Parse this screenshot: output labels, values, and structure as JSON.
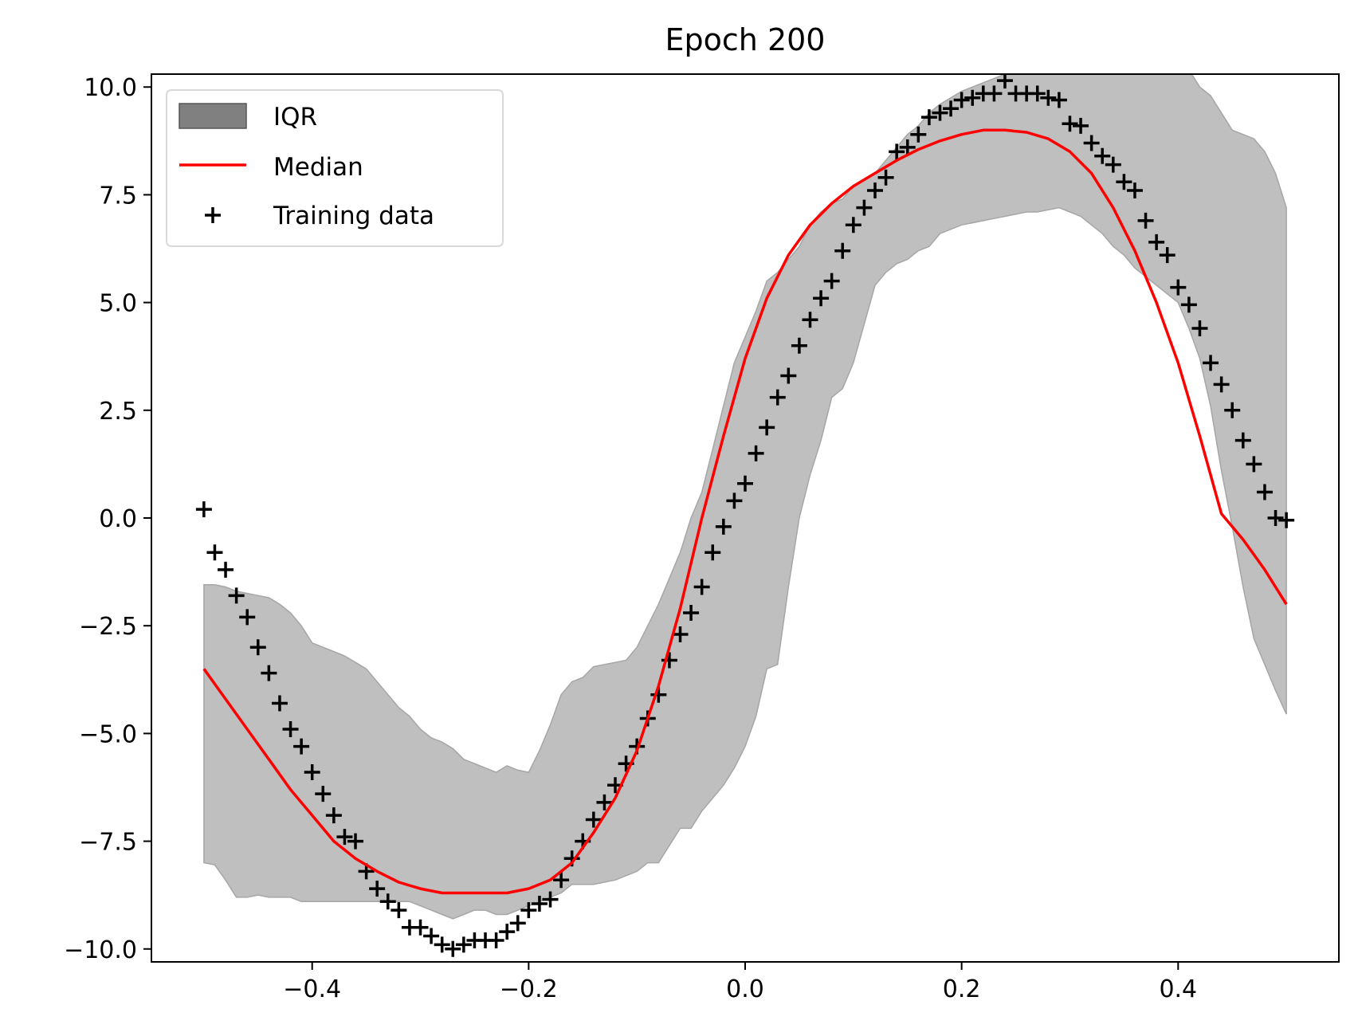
{
  "chart_data": {
    "type": "line",
    "title": "Epoch 200",
    "xlabel": "",
    "ylabel": "",
    "xlim": [
      -0.5485,
      0.5485
    ],
    "ylim": [
      -10.3,
      10.3
    ],
    "xticks": [
      -0.4,
      -0.2,
      0.0,
      0.2,
      0.4
    ],
    "xtick_labels": [
      "−0.4",
      "−0.2",
      "0.0",
      "0.2",
      "0.4"
    ],
    "yticks": [
      -10.0,
      -7.5,
      -5.0,
      -2.5,
      0.0,
      2.5,
      5.0,
      7.5,
      10.0
    ],
    "ytick_labels": [
      "−10.0",
      "−7.5",
      "−5.0",
      "−2.5",
      "0.0",
      "2.5",
      "5.0",
      "7.5",
      "10.0"
    ],
    "grid": false,
    "legend_location": "upper left",
    "legend": [
      {
        "label": "IQR",
        "kind": "patch"
      },
      {
        "label": "Median",
        "kind": "line"
      },
      {
        "label": "Training data",
        "kind": "marker"
      }
    ],
    "colors": {
      "iqr_fill": "#bfbfbf",
      "iqr_edge": "#a6a6a6",
      "iqr_legend": "#808080",
      "median": "#ff0000",
      "training": "#000000"
    },
    "iqr": {
      "name": "IQR",
      "x": [
        -0.5,
        -0.49,
        -0.48,
        -0.47,
        -0.46,
        -0.45,
        -0.44,
        -0.43,
        -0.42,
        -0.41,
        -0.4,
        -0.39,
        -0.38,
        -0.37,
        -0.36,
        -0.35,
        -0.34,
        -0.33,
        -0.32,
        -0.31,
        -0.3,
        -0.29,
        -0.28,
        -0.27,
        -0.26,
        -0.25,
        -0.24,
        -0.23,
        -0.22,
        -0.21,
        -0.2,
        -0.19,
        -0.18,
        -0.17,
        -0.16,
        -0.15,
        -0.14,
        -0.13,
        -0.12,
        -0.11,
        -0.1,
        -0.09,
        -0.08,
        -0.07,
        -0.06,
        -0.05,
        -0.04,
        -0.03,
        -0.02,
        -0.01,
        0.0,
        0.01,
        0.02,
        0.03,
        0.04,
        0.05,
        0.06,
        0.07,
        0.08,
        0.09,
        0.1,
        0.11,
        0.12,
        0.13,
        0.14,
        0.15,
        0.16,
        0.17,
        0.18,
        0.19,
        0.2,
        0.21,
        0.22,
        0.23,
        0.24,
        0.25,
        0.26,
        0.27,
        0.28,
        0.29,
        0.3,
        0.31,
        0.32,
        0.33,
        0.34,
        0.35,
        0.36,
        0.37,
        0.38,
        0.39,
        0.4,
        0.41,
        0.42,
        0.43,
        0.44,
        0.45,
        0.46,
        0.47,
        0.48,
        0.49,
        0.5
      ],
      "lower": [
        -8.0,
        -8.05,
        -8.4,
        -8.8,
        -8.8,
        -8.75,
        -8.8,
        -8.8,
        -8.8,
        -8.9,
        -8.9,
        -8.9,
        -8.9,
        -8.9,
        -8.9,
        -8.9,
        -8.9,
        -8.9,
        -8.9,
        -8.9,
        -9.0,
        -9.1,
        -9.2,
        -9.3,
        -9.2,
        -9.1,
        -9.1,
        -9.2,
        -9.2,
        -9.1,
        -9.0,
        -8.9,
        -8.8,
        -8.7,
        -8.5,
        -8.5,
        -8.5,
        -8.45,
        -8.4,
        -8.3,
        -8.2,
        -8.0,
        -8.0,
        -7.6,
        -7.2,
        -7.2,
        -6.8,
        -6.5,
        -6.2,
        -5.8,
        -5.3,
        -4.6,
        -3.5,
        -3.4,
        -1.6,
        0.0,
        1.0,
        1.8,
        2.8,
        3.0,
        3.6,
        4.5,
        5.4,
        5.7,
        5.9,
        6.0,
        6.2,
        6.3,
        6.6,
        6.7,
        6.8,
        6.85,
        6.9,
        6.95,
        7.0,
        7.05,
        7.1,
        7.1,
        7.15,
        7.2,
        7.1,
        7.0,
        6.8,
        6.6,
        6.3,
        6.1,
        5.8,
        5.6,
        5.4,
        5.2,
        5.0,
        4.4,
        3.7,
        2.6,
        1.1,
        -0.2,
        -1.6,
        -2.8,
        -3.4,
        -4.0,
        -4.55
      ],
      "upper": [
        -1.55,
        -1.55,
        -1.6,
        -1.7,
        -1.75,
        -1.8,
        -1.85,
        -2.0,
        -2.2,
        -2.5,
        -2.9,
        -3.0,
        -3.1,
        -3.2,
        -3.35,
        -3.5,
        -3.8,
        -4.1,
        -4.4,
        -4.6,
        -4.9,
        -5.1,
        -5.2,
        -5.35,
        -5.6,
        -5.7,
        -5.8,
        -5.9,
        -5.75,
        -5.85,
        -5.9,
        -5.4,
        -4.8,
        -4.1,
        -3.8,
        -3.7,
        -3.45,
        -3.4,
        -3.35,
        -3.3,
        -3.0,
        -2.5,
        -2.0,
        -1.4,
        -0.8,
        0.0,
        0.6,
        1.6,
        2.6,
        3.6,
        4.2,
        4.8,
        5.5,
        5.7,
        6.0,
        6.3,
        6.8,
        7.1,
        7.3,
        7.4,
        7.7,
        7.85,
        8.0,
        8.3,
        8.6,
        8.9,
        9.1,
        9.4,
        9.6,
        9.75,
        9.9,
        10.0,
        10.1,
        10.2,
        10.3,
        10.4,
        10.5,
        10.6,
        10.6,
        10.6,
        10.6,
        10.6,
        10.6,
        10.6,
        10.6,
        10.55,
        10.5,
        10.5,
        10.5,
        10.45,
        10.45,
        10.4,
        10.0,
        9.8,
        9.4,
        9.0,
        8.9,
        8.8,
        8.5,
        8.0,
        7.2
      ]
    },
    "median": {
      "name": "Median",
      "x": [
        -0.5,
        -0.48,
        -0.46,
        -0.44,
        -0.42,
        -0.4,
        -0.38,
        -0.36,
        -0.34,
        -0.32,
        -0.3,
        -0.28,
        -0.26,
        -0.24,
        -0.22,
        -0.2,
        -0.18,
        -0.16,
        -0.14,
        -0.12,
        -0.1,
        -0.08,
        -0.06,
        -0.04,
        -0.02,
        0.0,
        0.02,
        0.04,
        0.06,
        0.08,
        0.1,
        0.12,
        0.14,
        0.16,
        0.18,
        0.2,
        0.22,
        0.24,
        0.26,
        0.28,
        0.3,
        0.32,
        0.34,
        0.36,
        0.38,
        0.4,
        0.42,
        0.44,
        0.46,
        0.48,
        0.5
      ],
      "values": [
        -3.5,
        -4.2,
        -4.9,
        -5.6,
        -6.3,
        -6.9,
        -7.5,
        -7.9,
        -8.2,
        -8.45,
        -8.6,
        -8.7,
        -8.7,
        -8.7,
        -8.7,
        -8.6,
        -8.4,
        -8.0,
        -7.3,
        -6.5,
        -5.4,
        -3.9,
        -2.1,
        0.0,
        1.9,
        3.7,
        5.1,
        6.1,
        6.8,
        7.3,
        7.7,
        8.0,
        8.3,
        8.55,
        8.75,
        8.9,
        9.0,
        9.0,
        8.95,
        8.8,
        8.5,
        8.0,
        7.2,
        6.2,
        5.0,
        3.6,
        1.9,
        0.1,
        -0.5,
        -1.2,
        -2.0
      ]
    },
    "training": {
      "name": "Training data",
      "x": [
        -0.5,
        -0.49,
        -0.48,
        -0.47,
        -0.46,
        -0.45,
        -0.44,
        -0.43,
        -0.42,
        -0.41,
        -0.4,
        -0.39,
        -0.38,
        -0.37,
        -0.36,
        -0.35,
        -0.34,
        -0.33,
        -0.32,
        -0.31,
        -0.3,
        -0.29,
        -0.28,
        -0.27,
        -0.26,
        -0.25,
        -0.24,
        -0.23,
        -0.22,
        -0.21,
        -0.2,
        -0.19,
        -0.18,
        -0.17,
        -0.16,
        -0.15,
        -0.14,
        -0.13,
        -0.12,
        -0.11,
        -0.1,
        -0.09,
        -0.08,
        -0.07,
        -0.06,
        -0.05,
        -0.04,
        -0.03,
        -0.02,
        -0.01,
        0.0,
        0.01,
        0.02,
        0.03,
        0.04,
        0.05,
        0.06,
        0.07,
        0.08,
        0.09,
        0.1,
        0.11,
        0.12,
        0.13,
        0.14,
        0.15,
        0.16,
        0.17,
        0.18,
        0.19,
        0.2,
        0.21,
        0.22,
        0.23,
        0.24,
        0.25,
        0.26,
        0.27,
        0.28,
        0.29,
        0.3,
        0.31,
        0.32,
        0.33,
        0.34,
        0.35,
        0.36,
        0.37,
        0.38,
        0.39,
        0.4,
        0.41,
        0.42,
        0.43,
        0.44,
        0.45,
        0.46,
        0.47,
        0.48,
        0.49,
        0.5
      ],
      "values": [
        0.2,
        -0.8,
        -1.2,
        -1.8,
        -2.3,
        -3.0,
        -3.6,
        -4.3,
        -4.9,
        -5.3,
        -5.9,
        -6.4,
        -6.9,
        -7.4,
        -7.5,
        -8.2,
        -8.6,
        -8.9,
        -9.1,
        -9.5,
        -9.5,
        -9.7,
        -9.9,
        -10.0,
        -9.9,
        -9.8,
        -9.8,
        -9.8,
        -9.6,
        -9.4,
        -9.1,
        -8.95,
        -8.85,
        -8.4,
        -7.9,
        -7.5,
        -7.0,
        -6.6,
        -6.2,
        -5.7,
        -5.3,
        -4.65,
        -4.1,
        -3.3,
        -2.7,
        -2.2,
        -1.6,
        -0.8,
        -0.2,
        0.4,
        0.8,
        1.5,
        2.1,
        2.8,
        3.3,
        4.0,
        4.6,
        5.1,
        5.5,
        6.2,
        6.8,
        7.2,
        7.6,
        7.9,
        8.5,
        8.6,
        8.9,
        9.3,
        9.4,
        9.5,
        9.7,
        9.75,
        9.85,
        9.85,
        10.15,
        9.85,
        9.85,
        9.85,
        9.75,
        9.7,
        9.15,
        9.1,
        8.7,
        8.4,
        8.2,
        7.8,
        7.6,
        6.9,
        6.4,
        6.1,
        5.35,
        4.95,
        4.4,
        3.6,
        3.1,
        2.5,
        1.8,
        1.25,
        0.6,
        0.0,
        -0.05
      ]
    }
  }
}
